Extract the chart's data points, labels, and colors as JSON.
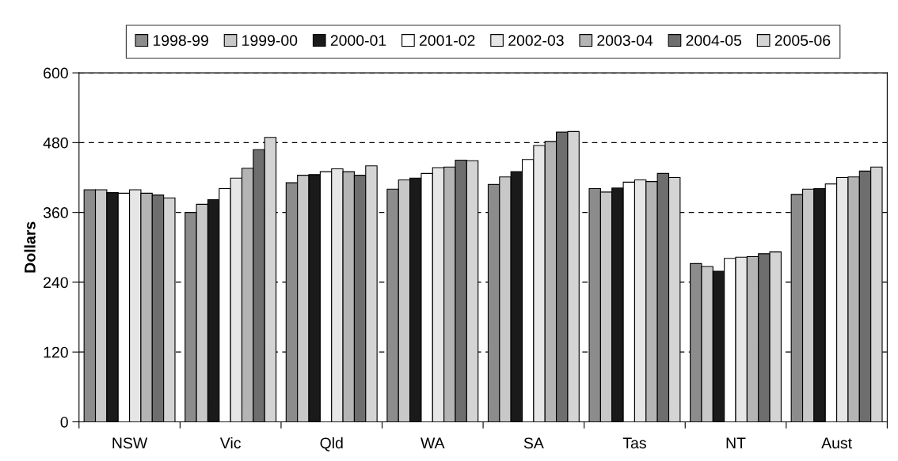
{
  "chart_data": {
    "type": "bar",
    "ylabel": "Dollars",
    "categories": [
      "NSW",
      "Vic",
      "Qld",
      "WA",
      "SA",
      "Tas",
      "NT",
      "Aust"
    ],
    "series": [
      {
        "name": "1998-99",
        "color": "#8c8c8c",
        "values": [
          399,
          360,
          411,
          400,
          408,
          401,
          272,
          391
        ]
      },
      {
        "name": "1999-00",
        "color": "#c8c8c8",
        "values": [
          399,
          374,
          424,
          416,
          421,
          395,
          267,
          400
        ]
      },
      {
        "name": "2000-01",
        "color": "#1a1a1a",
        "values": [
          394,
          382,
          425,
          419,
          430,
          402,
          259,
          401
        ]
      },
      {
        "name": "2001-02",
        "color": "#ffffff",
        "values": [
          393,
          401,
          430,
          427,
          451,
          412,
          281,
          409
        ]
      },
      {
        "name": "2002-03",
        "color": "#e6e6e6",
        "values": [
          399,
          419,
          435,
          437,
          475,
          416,
          283,
          420
        ]
      },
      {
        "name": "2003-04",
        "color": "#b4b4b4",
        "values": [
          393,
          436,
          430,
          438,
          482,
          413,
          284,
          421
        ]
      },
      {
        "name": "2004-05",
        "color": "#6e6e6e",
        "values": [
          390,
          468,
          424,
          450,
          498,
          427,
          289,
          431
        ]
      },
      {
        "name": "2005-06",
        "color": "#d4d4d4",
        "values": [
          385,
          489,
          440,
          449,
          499,
          420,
          292,
          438
        ]
      }
    ],
    "ylim": [
      0,
      600
    ],
    "yticks": [
      0,
      120,
      240,
      360,
      480,
      600
    ],
    "grid": "y",
    "legend": "top"
  }
}
